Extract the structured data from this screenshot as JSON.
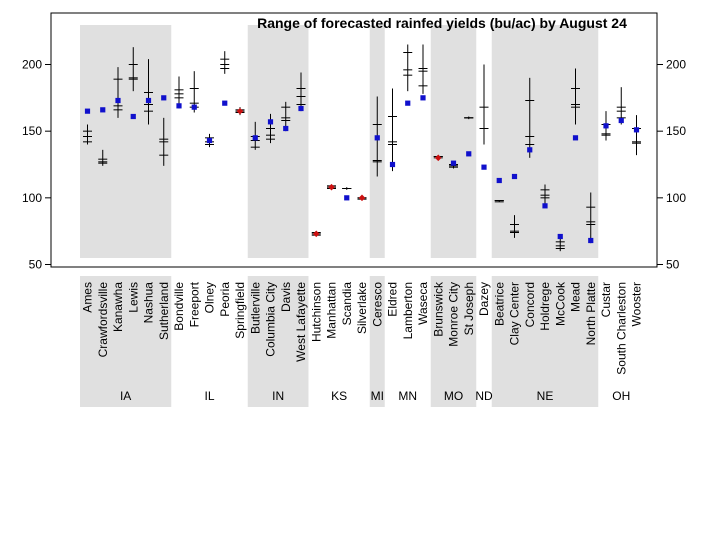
{
  "chart_data": {
    "type": "scatter",
    "title": "Range of forecasted rainfed yields (bu/ac) by August 24",
    "ylim": [
      45,
      235
    ],
    "yticks": [
      50,
      100,
      150,
      200
    ],
    "colors": {
      "current": "#1010cc",
      "alt": "#cc1010",
      "band": "#e0e0e0",
      "range": "#000000"
    },
    "sites": [
      {
        "name": "Ames",
        "state": "IA",
        "low": 140,
        "q1": 142,
        "median": 146,
        "q3": 150,
        "high": 155,
        "point": 165,
        "point_color": "#1010cc"
      },
      {
        "name": "Crawfordsville",
        "state": "IA",
        "low": 124,
        "q1": 126,
        "median": 127,
        "q3": 129,
        "high": 136,
        "point": 166,
        "point_color": "#1010cc"
      },
      {
        "name": "Kanawha",
        "state": "IA",
        "low": 160,
        "q1": 166,
        "median": 169,
        "q3": 189,
        "high": 198,
        "point": 173,
        "point_color": "#1010cc"
      },
      {
        "name": "Lewis",
        "state": "IA",
        "low": 180,
        "q1": 189,
        "median": 190,
        "q3": 200,
        "high": 213,
        "point": 161,
        "point_color": "#1010cc"
      },
      {
        "name": "Nashua",
        "state": "IA",
        "low": 155,
        "q1": 165,
        "median": 170,
        "q3": 179,
        "high": 204,
        "point": 173,
        "point_color": "#1010cc"
      },
      {
        "name": "Sutherland",
        "state": "IA",
        "low": 124,
        "q1": 132,
        "median": 142,
        "q3": 144,
        "high": 160,
        "point": 175,
        "point_color": "#1010cc"
      },
      {
        "name": "Bondville",
        "state": "IL",
        "low": 167,
        "q1": 175,
        "median": 178,
        "q3": 181,
        "high": 191,
        "point": 169,
        "point_color": "#1010cc"
      },
      {
        "name": "Freeport",
        "state": "IL",
        "low": 164,
        "q1": 168,
        "median": 171,
        "q3": 182,
        "high": 195,
        "point": 168,
        "point_color": "#1010cc"
      },
      {
        "name": "Olney",
        "state": "IL",
        "low": 138,
        "q1": 140,
        "median": 142,
        "q3": 145,
        "high": 148,
        "point": 143,
        "point_color": "#1010cc"
      },
      {
        "name": "Peoria",
        "state": "IL",
        "low": 193,
        "q1": 197,
        "median": 200,
        "q3": 204,
        "high": 210,
        "point": 171,
        "point_color": "#1010cc"
      },
      {
        "name": "Springfield",
        "state": "IL",
        "low": 162,
        "q1": 164,
        "median": 165,
        "q3": 166,
        "high": 168,
        "point": 165,
        "point_color": "#cc1010"
      },
      {
        "name": "Butlerville",
        "state": "IN",
        "low": 136,
        "q1": 138,
        "median": 143,
        "q3": 146,
        "high": 157,
        "point": 145,
        "point_color": "#1010cc"
      },
      {
        "name": "Columbia City",
        "state": "IN",
        "low": 141,
        "q1": 144,
        "median": 147,
        "q3": 152,
        "high": 163,
        "point": 157,
        "point_color": "#1010cc"
      },
      {
        "name": "Davis",
        "state": "IN",
        "low": 150,
        "q1": 158,
        "median": 160,
        "q3": 168,
        "high": 172,
        "point": 152,
        "point_color": "#1010cc"
      },
      {
        "name": "West Lafayette",
        "state": "IN",
        "low": 165,
        "q1": 170,
        "median": 176,
        "q3": 182,
        "high": 194,
        "point": 167,
        "point_color": "#1010cc"
      },
      {
        "name": "Hutchinson",
        "state": "KS",
        "low": 72,
        "q1": 72,
        "median": 73,
        "q3": 74,
        "high": 75,
        "point": 73,
        "point_color": "#cc1010"
      },
      {
        "name": "Manhattan",
        "state": "KS",
        "low": 106,
        "q1": 107,
        "median": 108,
        "q3": 109,
        "high": 110,
        "point": 108,
        "point_color": "#cc1010"
      },
      {
        "name": "Scandia",
        "state": "KS",
        "low": 106,
        "q1": 107,
        "median": 107,
        "q3": 107,
        "high": 108,
        "point": 100,
        "point_color": "#1010cc"
      },
      {
        "name": "Silverlake",
        "state": "KS",
        "low": 98,
        "q1": 99,
        "median": 100,
        "q3": 100,
        "high": 101,
        "point": 100,
        "point_color": "#cc1010"
      },
      {
        "name": "Ceresco",
        "state": "MI",
        "low": 116,
        "q1": 127,
        "median": 128,
        "q3": 155,
        "high": 176,
        "point": 145,
        "point_color": "#1010cc"
      },
      {
        "name": "Eldred",
        "state": "MN",
        "low": 120,
        "q1": 140,
        "median": 142,
        "q3": 161,
        "high": 182,
        "point": 125,
        "point_color": "#1010cc"
      },
      {
        "name": "Lamberton",
        "state": "MN",
        "low": 180,
        "q1": 192,
        "median": 196,
        "q3": 209,
        "high": 215,
        "point": 171,
        "point_color": "#1010cc"
      },
      {
        "name": "Waseca",
        "state": "MN",
        "low": 178,
        "q1": 184,
        "median": 195,
        "q3": 197,
        "high": 215,
        "point": 175,
        "point_color": "#1010cc"
      },
      {
        "name": "Brunswick",
        "state": "MO",
        "low": 129,
        "q1": 130,
        "median": 131,
        "q3": 131,
        "high": 132,
        "point": 130,
        "point_color": "#cc1010"
      },
      {
        "name": "Monroe City",
        "state": "MO",
        "low": 122,
        "q1": 123,
        "median": 124,
        "q3": 125,
        "high": 126,
        "point": 126,
        "point_color": "#1010cc"
      },
      {
        "name": "St Joseph",
        "state": "MO",
        "low": 159,
        "q1": 160,
        "median": 160,
        "q3": 160,
        "high": 161,
        "point": 133,
        "point_color": "#1010cc"
      },
      {
        "name": "Dazey",
        "state": "ND",
        "low": 140,
        "q1": 152,
        "median": 152,
        "q3": 168,
        "high": 200,
        "point": 123,
        "point_color": "#1010cc"
      },
      {
        "name": "Beatrice",
        "state": "NE",
        "low": 97,
        "q1": 97,
        "median": 98,
        "q3": 98,
        "high": 98,
        "point": 113,
        "point_color": "#1010cc"
      },
      {
        "name": "Clay Center",
        "state": "NE",
        "low": 70,
        "q1": 74,
        "median": 75,
        "q3": 80,
        "high": 87,
        "point": 116,
        "point_color": "#1010cc"
      },
      {
        "name": "Concord",
        "state": "NE",
        "low": 130,
        "q1": 140,
        "median": 146,
        "q3": 173,
        "high": 190,
        "point": 136,
        "point_color": "#1010cc"
      },
      {
        "name": "Holdrege",
        "state": "NE",
        "low": 93,
        "q1": 100,
        "median": 102,
        "q3": 106,
        "high": 110,
        "point": 94,
        "point_color": "#1010cc"
      },
      {
        "name": "McCook",
        "state": "NE",
        "low": 60,
        "q1": 62,
        "median": 64,
        "q3": 67,
        "high": 72,
        "point": 71,
        "point_color": "#1010cc"
      },
      {
        "name": "Mead",
        "state": "NE",
        "low": 155,
        "q1": 168,
        "median": 170,
        "q3": 182,
        "high": 197,
        "point": 145,
        "point_color": "#1010cc"
      },
      {
        "name": "North Platte",
        "state": "NE",
        "low": 66,
        "q1": 80,
        "median": 82,
        "q3": 93,
        "high": 104,
        "point": 68,
        "point_color": "#1010cc"
      },
      {
        "name": "Custar",
        "state": "OH",
        "low": 143,
        "q1": 147,
        "median": 148,
        "q3": 155,
        "high": 165,
        "point": 154,
        "point_color": "#1010cc"
      },
      {
        "name": "South Charleston",
        "state": "OH",
        "low": 155,
        "q1": 160,
        "median": 165,
        "q3": 168,
        "high": 183,
        "point": 158,
        "point_color": "#1010cc"
      },
      {
        "name": "Wooster",
        "state": "OH",
        "low": 132,
        "q1": 141,
        "median": 142,
        "q3": 152,
        "high": 162,
        "point": 151,
        "point_color": "#1010cc"
      }
    ],
    "states": [
      {
        "label": "IA",
        "first": 0,
        "last": 5,
        "shaded": true
      },
      {
        "label": "IL",
        "first": 6,
        "last": 10,
        "shaded": false
      },
      {
        "label": "IN",
        "first": 11,
        "last": 14,
        "shaded": true
      },
      {
        "label": "KS",
        "first": 15,
        "last": 18,
        "shaded": false
      },
      {
        "label": "MI",
        "first": 19,
        "last": 19,
        "shaded": true
      },
      {
        "label": "MN",
        "first": 20,
        "last": 22,
        "shaded": false
      },
      {
        "label": "MO",
        "first": 23,
        "last": 25,
        "shaded": true
      },
      {
        "label": "ND",
        "first": 26,
        "last": 26,
        "shaded": false
      },
      {
        "label": "NE",
        "first": 27,
        "last": 33,
        "shaded": true
      },
      {
        "label": "OH",
        "first": 34,
        "last": 36,
        "shaded": false
      }
    ]
  }
}
